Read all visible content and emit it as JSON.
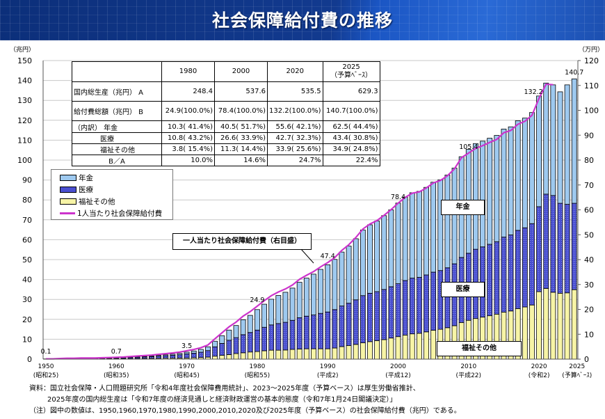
{
  "title": "社会保障給付費の推移",
  "left_unit": "（兆円）",
  "right_unit": "（万円）",
  "table": {
    "headers": [
      "",
      "1980",
      "2000",
      "2020",
      "2025",
      "（予算ﾍﾞｰｽ）"
    ],
    "rows": [
      {
        "label": "国内総生産（兆円） A",
        "cells": [
          "248.4",
          "537.6",
          "535.5",
          "629.3"
        ]
      },
      {
        "label": "給付費総額（兆円） B",
        "cells": [
          "24.9(100.0%)",
          "78.4(100.0%)",
          "132.2(100.0%)",
          "140.7(100.0%)"
        ]
      },
      {
        "label": "（内訳） 年金",
        "cells": [
          "10.3( 41.4%)",
          "40.5( 51.7%)",
          "55.6( 42.1%)",
          "62.5( 44.4%)"
        ]
      },
      {
        "label": "医療",
        "cells": [
          "10.8( 43.2%)",
          "26.6( 33.9%)",
          "42.7( 32.3%)",
          "43.4( 30.8%)"
        ]
      },
      {
        "label": "福祉その他",
        "cells": [
          "3.8( 15.4%)",
          "11.3( 14.4%)",
          "33.9( 25.6%)",
          "34.9( 24.8%)"
        ]
      },
      {
        "label": "B／A",
        "cells": [
          "10.0%",
          "14.6%",
          "24.7%",
          "22.4%"
        ]
      }
    ]
  },
  "legend": [
    "年金",
    "医療",
    "福祉その他",
    "1人当たり社会保障給付費"
  ],
  "callout": "一人当たり社会保障給付費（右目盛）",
  "area_labels": {
    "pension": "年金",
    "medical": "医療",
    "welfare": "福祉その他"
  },
  "x_ticks": [
    {
      "year": "1950",
      "era": "(昭和25)"
    },
    {
      "year": "1960",
      "era": "(昭和35)"
    },
    {
      "year": "1970",
      "era": "(昭和45)"
    },
    {
      "year": "1980",
      "era": "(昭和55)"
    },
    {
      "year": "1990",
      "era": "(平成2)"
    },
    {
      "year": "2000",
      "era": "(平成12)"
    },
    {
      "year": "2010",
      "era": "(平成22)"
    },
    {
      "year": "2020",
      "era": "(令和2)"
    },
    {
      "year": "2025",
      "era": "(予算ﾍﾞｰｽ)"
    }
  ],
  "footnotes": [
    "資料：国立社会保障・人口問題研究所「令和4年度社会保障費用統計」、2023～2025年度（予算ベース）は厚生労働省推計、",
    "2025年度の国内総生産は「令和7年度の経済見通しと経済財政運営の基本的態度（令和7年1月24日閣議決定）」",
    "（注）図中の数値は、1950,1960,1970,1980,1990,2000,2010,2020及び2025年度（予算ベース）の社会保障給付費（兆円）である。"
  ],
  "colors": {
    "pension": "#9ec9ef",
    "medical": "#4a4fd0",
    "welfare": "#f7f4a6",
    "line": "#cc33cc",
    "banner": "#123a8f"
  },
  "chart_data": {
    "type": "bar",
    "stacked": true,
    "title": "社会保障給付費の推移",
    "ylabel": "兆円",
    "y2label": "万円",
    "ylim": [
      0,
      150
    ],
    "y2lim": [
      0,
      120
    ],
    "y_ticks": [
      0,
      10,
      20,
      30,
      40,
      50,
      60,
      70,
      80,
      90,
      100,
      110,
      120,
      130,
      140,
      150
    ],
    "y2_ticks": [
      0,
      10,
      20,
      30,
      40,
      50,
      60,
      70,
      80,
      90,
      100,
      110,
      120
    ],
    "start_year": 1950,
    "series": [
      {
        "name": "福祉その他",
        "values": [
          0.03,
          0.03,
          0.07,
          0.1,
          0.1,
          0.14,
          0.14,
          0.14,
          0.17,
          0.21,
          0.24,
          0.26,
          0.31,
          0.36,
          0.39,
          0.42,
          0.45,
          0.49,
          0.52,
          0.55,
          0.59,
          0.7,
          0.8,
          1.0,
          1.5,
          1.9,
          2.3,
          2.8,
          3.2,
          3.6,
          3.8,
          4.2,
          4.5,
          4.5,
          4.6,
          4.9,
          5.1,
          5.2,
          5.2,
          5.2,
          5.2,
          5.6,
          6.3,
          6.8,
          7.4,
          8.2,
          8.8,
          9.3,
          9.8,
          10.6,
          11.3,
          12.1,
          12.7,
          13.0,
          13.7,
          14.5,
          15.0,
          15.8,
          16.8,
          18.4,
          19.5,
          20.4,
          21.1,
          21.8,
          22.6,
          23.6,
          24.2,
          25.4,
          26.2,
          27.2,
          33.9,
          35.5,
          33.6,
          33.1,
          33.3,
          34.9
        ]
      },
      {
        "name": "医療",
        "values": [
          0.05,
          0.05,
          0.1,
          0.15,
          0.15,
          0.2,
          0.2,
          0.2,
          0.25,
          0.3,
          0.35,
          0.41,
          0.52,
          0.62,
          0.74,
          0.86,
          1.05,
          1.23,
          1.4,
          1.65,
          2.03,
          2.3,
          2.7,
          3.3,
          4.7,
          6.0,
          7.2,
          8.0,
          9.1,
          9.8,
          10.8,
          11.8,
          12.7,
          13.4,
          13.9,
          14.6,
          15.7,
          16.4,
          17.0,
          17.8,
          18.5,
          19.3,
          20.4,
          21.3,
          22.4,
          23.7,
          24.3,
          24.6,
          25.2,
          25.8,
          26.6,
          27.4,
          28.0,
          28.1,
          28.6,
          29.2,
          29.5,
          30.1,
          31.1,
          32.7,
          33.7,
          34.8,
          35.3,
          35.9,
          36.4,
          37.7,
          38.2,
          39.3,
          39.8,
          40.9,
          42.7,
          47.4,
          48.6,
          45.2,
          44.5,
          43.4
        ]
      },
      {
        "name": "年金",
        "values": [
          0.02,
          0.02,
          0.03,
          0.05,
          0.05,
          0.06,
          0.06,
          0.06,
          0.08,
          0.09,
          0.11,
          0.13,
          0.17,
          0.22,
          0.27,
          0.32,
          0.4,
          0.48,
          0.58,
          0.7,
          0.88,
          1.1,
          1.4,
          1.9,
          2.8,
          3.9,
          5.1,
          6.1,
          7.5,
          8.6,
          10.3,
          11.6,
          12.9,
          14.1,
          15.1,
          16.2,
          17.8,
          19.1,
          20.5,
          22.1,
          23.7,
          25.2,
          27.1,
          28.7,
          30.7,
          33.0,
          34.4,
          35.5,
          37.1,
          38.6,
          40.5,
          41.9,
          42.9,
          43.2,
          44.0,
          45.2,
          45.6,
          46.6,
          48.1,
          50.6,
          52.2,
          53.1,
          53.1,
          53.3,
          53.4,
          54.3,
          54.3,
          55.1,
          55.1,
          55.8,
          55.6,
          55.8,
          55.6,
          56.0,
          60.0,
          62.5
        ]
      }
    ],
    "line": {
      "name": "1人当たり社会保障給付費",
      "axis": "right",
      "values": [
        0.12,
        0.12,
        0.24,
        0.35,
        0.35,
        0.45,
        0.45,
        0.45,
        0.55,
        0.65,
        0.75,
        0.85,
        1.05,
        1.25,
        1.44,
        1.63,
        1.92,
        2.2,
        2.48,
        2.84,
        3.37,
        3.9,
        4.6,
        5.7,
        8.2,
        10.6,
        13.0,
        14.9,
        17.3,
        19.1,
        21.3,
        23.5,
        25.5,
        27.0,
        28.2,
        29.8,
        32.1,
        33.7,
        35.2,
        37.1,
        38.8,
        40.8,
        43.7,
        46.0,
        48.9,
        52.3,
        54.3,
        55.7,
        57.8,
        60.1,
        62.7,
        65.0,
        66.7,
        67.2,
        68.8,
        70.8,
        71.8,
        73.7,
        76.5,
        81.0,
        82.8,
        84.7,
        85.8,
        87.1,
        88.3,
        91.0,
        91.9,
        94.4,
        95.6,
        98.0,
        104.8,
        110.5,
        110.3
      ]
    },
    "data_labels": [
      {
        "year": 1950,
        "text": "0.1"
      },
      {
        "year": 1960,
        "text": "0.7"
      },
      {
        "year": 1970,
        "text": "3.5"
      },
      {
        "year": 1980,
        "text": "24.9"
      },
      {
        "year": 1990,
        "text": "47.4"
      },
      {
        "year": 2000,
        "text": "78.4"
      },
      {
        "year": 2010,
        "text": "105.4"
      },
      {
        "year": 2020,
        "text": "132.2"
      },
      {
        "year": 2025,
        "text": "140.7"
      }
    ]
  }
}
